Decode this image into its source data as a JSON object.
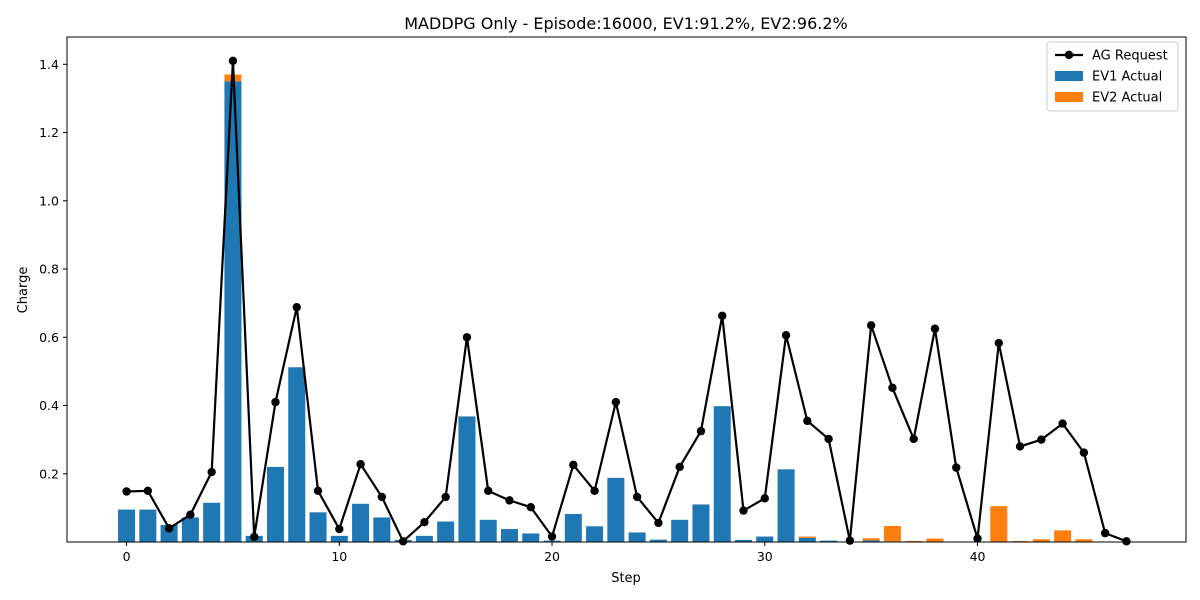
{
  "chart_data": {
    "type": "bar",
    "title": "MADDPG Only - Episode:16000, EV1:91.2%, EV2:96.2%",
    "xlabel": "Step",
    "ylabel": "Charge",
    "xlim": [
      -2.8,
      49.8
    ],
    "ylim": [
      0,
      1.48
    ],
    "xticks": [
      0,
      10,
      20,
      30,
      40
    ],
    "yticks": [
      0.2,
      0.4,
      0.6,
      0.8,
      1.0,
      1.2,
      1.4
    ],
    "grid": false,
    "legend_position": "top-right",
    "stacked": true,
    "x": [
      0,
      1,
      2,
      3,
      4,
      5,
      6,
      7,
      8,
      9,
      10,
      11,
      12,
      13,
      14,
      15,
      16,
      17,
      18,
      19,
      20,
      21,
      22,
      23,
      24,
      25,
      26,
      27,
      28,
      29,
      30,
      31,
      32,
      33,
      34,
      35,
      36,
      37,
      38,
      39,
      40,
      41,
      42,
      43,
      44,
      45,
      46,
      47
    ],
    "series": [
      {
        "name": "AG Request",
        "kind": "line",
        "color": "#000000",
        "values": [
          0.148,
          0.15,
          0.04,
          0.08,
          0.205,
          1.41,
          0.015,
          0.41,
          0.688,
          0.15,
          0.038,
          0.228,
          0.132,
          0.002,
          0.058,
          0.132,
          0.6,
          0.15,
          0.122,
          0.102,
          0.016,
          0.226,
          0.15,
          0.41,
          0.132,
          0.056,
          0.22,
          0.325,
          0.663,
          0.092,
          0.128,
          0.606,
          0.355,
          0.302,
          0.004,
          0.635,
          0.452,
          0.302,
          0.625,
          0.218,
          0.01,
          0.583,
          0.28,
          0.3,
          0.347,
          0.262,
          0.026,
          0.002
        ]
      },
      {
        "name": "EV1 Actual",
        "kind": "bar",
        "color": "#1f77b4",
        "values": [
          0.095,
          0.095,
          0.05,
          0.072,
          0.115,
          1.35,
          0.018,
          0.22,
          0.512,
          0.087,
          0.018,
          0.112,
          0.072,
          0.006,
          0.018,
          0.06,
          0.368,
          0.065,
          0.038,
          0.025,
          0.004,
          0.082,
          0.046,
          0.188,
          0.028,
          0.007,
          0.065,
          0.11,
          0.398,
          0.006,
          0.016,
          0.213,
          0.012,
          0.004,
          0.0,
          0.005,
          0.002,
          0.0,
          0.0,
          0.0,
          0.0,
          0.0,
          0.0,
          0.0,
          0.0,
          0.0,
          0.0,
          0.0
        ]
      },
      {
        "name": "EV2 Actual",
        "kind": "bar",
        "color": "#ff7f0e",
        "values": [
          0.0,
          0.0,
          0.0,
          0.0,
          0.0,
          0.02,
          0.0,
          0.0,
          0.0,
          0.0,
          0.0,
          0.0,
          0.0,
          0.0,
          0.0,
          0.0,
          0.0,
          0.0,
          0.0,
          0.0,
          0.0,
          0.0,
          0.0,
          0.0,
          0.0,
          0.0,
          0.0,
          0.0,
          0.0,
          0.0,
          0.0,
          0.0,
          0.004,
          0.0,
          0.0,
          0.006,
          0.045,
          0.003,
          0.01,
          0.0,
          0.0,
          0.105,
          0.003,
          0.008,
          0.034,
          0.008,
          0.0,
          0.0
        ]
      }
    ]
  }
}
